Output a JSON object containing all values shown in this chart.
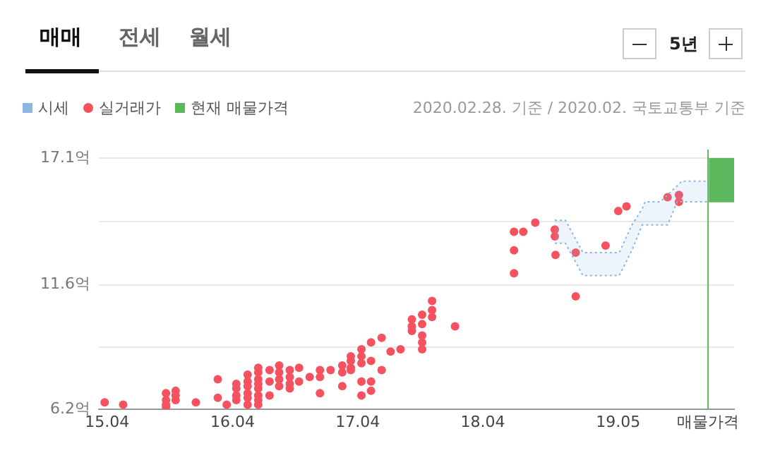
{
  "chart_data": {
    "type": "scatter",
    "annotations": [
      "2020.02.28. 기준 / 2020.02. 국토교통부 기준",
      "매매",
      "전세",
      "월세",
      "5년"
    ],
    "xlim": [
      "2015-03-08",
      "2020-04-03"
    ],
    "xticks": [
      {
        "value": "2015-04",
        "label": "15.04"
      },
      {
        "value": "2016-04",
        "label": "16.04"
      },
      {
        "value": "2017-04",
        "label": "17.04"
      },
      {
        "value": "2018-04",
        "label": "18.04"
      },
      {
        "value": "2019-05",
        "label": "19.05"
      },
      {
        "value": "2020-01-18",
        "label": "매물가격"
      }
    ],
    "ylim": [
      6.2,
      17.1
    ],
    "yticks": [
      {
        "value": 6.2,
        "label": "6.2억"
      },
      {
        "value": 8.9,
        "label": null
      },
      {
        "value": 11.6,
        "label": "11.6억"
      },
      {
        "value": 14.35,
        "label": null
      },
      {
        "value": 17.1,
        "label": "17.1억"
      }
    ],
    "grid": "y",
    "legend": "top left",
    "marker": "circle",
    "ref_lines": [
      {
        "axis": "x",
        "value": "2020-01-18",
        "color": "#5cb85c"
      }
    ],
    "series": [
      {
        "name": "시세",
        "type": "area",
        "color": "#8bb8e3",
        "line_style": "dotted",
        "marker": "none",
        "x": [
          "2018-10-28",
          "2018-11-28",
          "2019-01-18",
          "2019-05-04",
          "2019-06-10",
          "2019-07-10",
          "2019-07-18",
          "2019-09-01",
          "2019-09-22",
          "2019-10-20",
          "2019-11-03",
          "2020-01-18"
        ],
        "values": [
          14.4,
          14.4,
          13.0,
          13.0,
          14.2,
          14.9,
          15.2,
          15.2,
          15.5,
          15.9,
          16.1,
          16.1
        ]
      },
      {
        "type": "line",
        "color": "#8bb8e3",
        "line_style": "dotted",
        "marker": "none",
        "x": [
          "2018-10-28",
          "2018-11-28",
          "2019-01-18",
          "2019-05-04",
          "2019-06-10",
          "2019-07-10",
          "2019-07-18",
          "2019-09-01",
          "2019-09-22",
          "2019-10-20",
          "2019-11-03",
          "2020-01-18"
        ],
        "values": [
          13.4,
          13.4,
          12.0,
          12.0,
          13.1,
          14.2,
          14.2,
          14.2,
          14.2,
          15.2,
          15.2,
          15.2
        ]
      },
      {
        "name": "실거래가",
        "color": "#f5515f",
        "x": [
          "2015-03-25",
          "2015-05-18",
          "2015-09-20",
          "2015-09-20",
          "2015-09-20",
          "2015-09-20",
          "2015-10-18",
          "2015-10-18",
          "2015-10-18",
          "2015-12-16",
          "2016-02-18",
          "2016-02-18",
          "2016-03-15",
          "2016-04-12",
          "2016-04-12",
          "2016-04-12",
          "2016-04-12",
          "2016-05-15",
          "2016-05-15",
          "2016-05-15",
          "2016-05-15",
          "2016-05-15",
          "2016-05-15",
          "2016-06-15",
          "2016-06-15",
          "2016-06-15",
          "2016-06-15",
          "2016-06-15",
          "2016-06-15",
          "2016-06-15",
          "2016-06-15",
          "2016-07-18",
          "2016-07-18",
          "2016-07-18",
          "2016-08-15",
          "2016-08-15",
          "2016-08-15",
          "2016-08-15",
          "2016-09-15",
          "2016-09-15",
          "2016-09-15",
          "2016-09-15",
          "2016-10-12",
          "2016-10-12",
          "2016-11-12",
          "2016-12-12",
          "2016-12-12",
          "2016-12-12",
          "2017-01-12",
          "2017-02-15",
          "2017-02-15",
          "2017-02-15",
          "2017-03-12",
          "2017-03-12",
          "2017-03-12",
          "2017-03-12",
          "2017-04-12",
          "2017-04-12",
          "2017-04-12",
          "2017-04-12",
          "2017-04-12",
          "2017-05-10",
          "2017-05-10",
          "2017-05-10",
          "2017-05-10",
          "2017-06-10",
          "2017-06-10",
          "2017-07-06",
          "2017-08-04",
          "2017-09-06",
          "2017-09-06",
          "2017-09-06",
          "2017-10-06",
          "2017-10-06",
          "2017-10-06",
          "2017-10-06",
          "2017-10-06",
          "2017-11-04",
          "2017-11-04",
          "2017-11-04",
          "2018-01-10",
          "2018-07-01",
          "2018-07-01",
          "2018-07-01",
          "2018-07-28",
          "2018-09-01",
          "2018-10-28",
          "2018-10-28",
          "2018-10-30",
          "2018-12-28",
          "2018-12-28",
          "2019-03-25",
          "2019-05-01",
          "2019-05-25",
          "2019-09-22",
          "2019-10-25",
          "2019-10-25"
        ],
        "values": [
          6.5,
          6.4,
          6.9,
          6.6,
          6.4,
          6.3,
          7.0,
          6.8,
          6.6,
          6.5,
          7.5,
          6.7,
          6.4,
          7.3,
          7.1,
          6.8,
          6.6,
          7.7,
          7.4,
          7.2,
          6.9,
          6.7,
          6.4,
          8.0,
          7.8,
          7.5,
          7.3,
          7.1,
          6.8,
          6.6,
          6.4,
          7.9,
          7.4,
          6.8,
          8.1,
          7.8,
          7.5,
          7.2,
          7.9,
          7.6,
          7.3,
          7.1,
          8.0,
          7.4,
          7.6,
          7.9,
          7.6,
          6.9,
          7.9,
          8.1,
          7.8,
          7.2,
          8.5,
          8.3,
          8.0,
          7.9,
          8.8,
          8.5,
          8.2,
          7.4,
          6.8,
          9.1,
          8.3,
          7.4,
          7.0,
          9.3,
          7.9,
          8.7,
          8.8,
          10.1,
          9.8,
          9.6,
          10.3,
          9.9,
          9.4,
          9.1,
          8.8,
          10.9,
          10.5,
          10.2,
          9.8,
          13.9,
          13.1,
          12.1,
          13.9,
          14.3,
          14.0,
          13.7,
          12.9,
          13.0,
          11.1,
          13.3,
          14.8,
          15.0,
          15.4,
          15.5,
          15.2
        ]
      },
      {
        "name": "현재 매물가격",
        "type": "bar",
        "color": "#5cb85c",
        "x": [
          "2020-02-28"
        ],
        "base": [
          15.2
        ],
        "values": [
          1.9
        ]
      }
    ]
  }
}
